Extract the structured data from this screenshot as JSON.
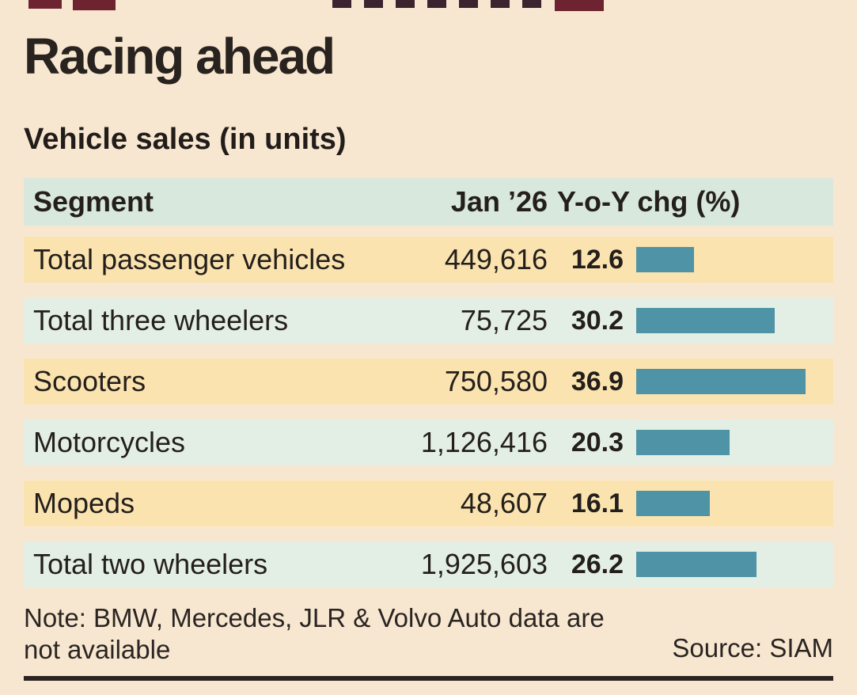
{
  "page": {
    "title": "Racing ahead",
    "subtitle": "Vehicle sales (in units)",
    "note": "Note: BMW, Mercedes, JLR & Volvo Auto data are not available",
    "source": "Source: SIAM"
  },
  "table": {
    "headers": {
      "segment": "Segment",
      "period": "Jan ’26",
      "change": "Y-o-Y chg (%)"
    },
    "rows": [
      {
        "segment": "Total passenger vehicles",
        "jan26": "449,616",
        "yoy": "12.6"
      },
      {
        "segment": "Total three wheelers",
        "jan26": "75,725",
        "yoy": "30.2"
      },
      {
        "segment": "Scooters",
        "jan26": "750,580",
        "yoy": "36.9"
      },
      {
        "segment": "Motorcycles",
        "jan26": "1,126,416",
        "yoy": "20.3"
      },
      {
        "segment": "Mopeds",
        "jan26": "48,607",
        "yoy": "16.1"
      },
      {
        "segment": "Total two wheelers",
        "jan26": "1,925,603",
        "yoy": "26.2"
      }
    ]
  },
  "chart_data": {
    "type": "bar",
    "orientation": "horizontal",
    "title": "Racing ahead",
    "subtitle": "Vehicle sales (in units)",
    "categories": [
      "Total passenger vehicles",
      "Total three wheelers",
      "Scooters",
      "Motorcycles",
      "Mopeds",
      "Total two wheelers"
    ],
    "series": [
      {
        "name": "Jan ’26 sales (units)",
        "values": [
          449616,
          75725,
          750580,
          1126416,
          48607,
          1925603
        ]
      },
      {
        "name": "Y-o-Y chg (%)",
        "values": [
          12.6,
          30.2,
          36.9,
          20.3,
          16.1,
          26.2
        ]
      }
    ],
    "bars_plotted_series": "Y-o-Y chg (%)",
    "xlim": [
      0,
      37
    ],
    "grid": false,
    "legend": false,
    "note": "Note: BMW, Mercedes, JLR & Volvo Auto data are not available",
    "source": "Source: SIAM"
  },
  "colors": {
    "bg": "#f8e7d0",
    "header-row": "#d8e8dc",
    "row-green": "#e3efe4",
    "row-orange": "#fae3ae",
    "bar": "#4f93a6",
    "text": "#241f1c",
    "rule": "#2b2421",
    "artifact-red": "#6e2430"
  }
}
